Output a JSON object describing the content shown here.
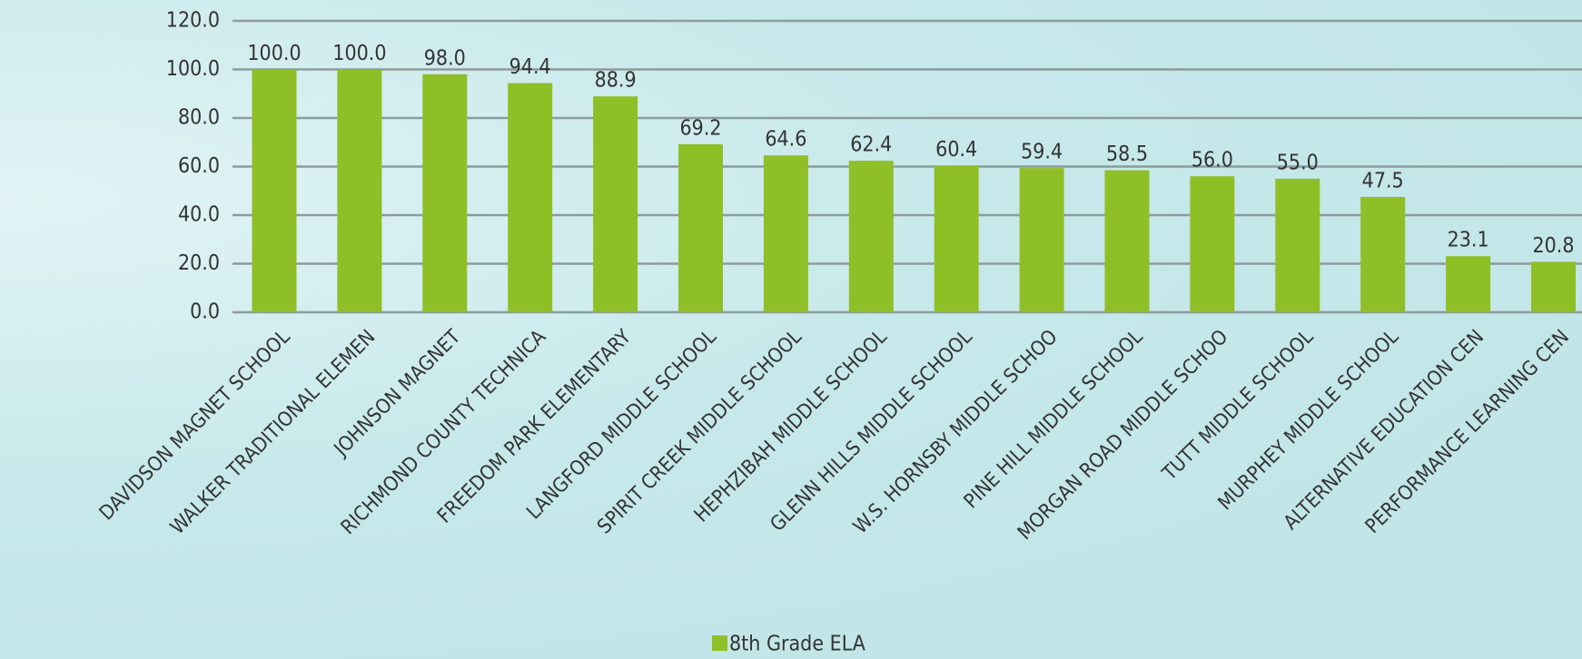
{
  "chart_data": {
    "type": "bar",
    "categories": [
      "DAVIDSON MAGNET SCHOOL",
      "WALKER TRADITIONAL ELEMEN",
      "JOHNSON MAGNET",
      "RICHMOND COUNTY TECHNICA",
      "FREEDOM PARK ELEMENTARY",
      "LANGFORD MIDDLE SCHOOL",
      "SPIRIT CREEK MIDDLE SCHOOL",
      "HEPHZIBAH MIDDLE SCHOOL",
      "GLENN HILLS MIDDLE SCHOOL",
      "W.S. HORNSBY MIDDLE SCHOO",
      "PINE HILL MIDDLE SCHOOL",
      "MORGAN ROAD MIDDLE SCHOO",
      "TUTT MIDDLE SCHOOL",
      "MURPHEY MIDDLE SCHOOL",
      "ALTERNATIVE EDUCATION CEN",
      "PERFORMANCE LEARNING CEN"
    ],
    "series": [
      {
        "name": "8th Grade ELA",
        "color": "#8fbf26",
        "values": [
          100,
          100,
          98,
          94.4,
          88.9,
          69.2,
          64.6,
          62.4,
          60.4,
          59.4,
          58.5,
          56,
          55,
          47.5,
          23.1,
          20.8
        ],
        "value_labels": [
          "100.0",
          "100.0",
          "98.0",
          "94.4",
          "88.9",
          "69.2",
          "64.6",
          "62.4",
          "60.4",
          "59.4",
          "58.5",
          "56.0",
          "55.0",
          "47.5",
          "23.1",
          "20.8"
        ]
      }
    ],
    "ylim": [
      0,
      120
    ],
    "yticks": [
      {
        "value": 0,
        "label": "0.0"
      },
      {
        "value": 20,
        "label": "20.0"
      },
      {
        "value": 40,
        "label": "40.0"
      },
      {
        "value": 60,
        "label": "60.0"
      },
      {
        "value": 80,
        "label": "80.0"
      },
      {
        "value": 100,
        "label": "100.0"
      },
      {
        "value": 120,
        "label": "120.0"
      }
    ],
    "grid": true,
    "legend": "bottom"
  }
}
